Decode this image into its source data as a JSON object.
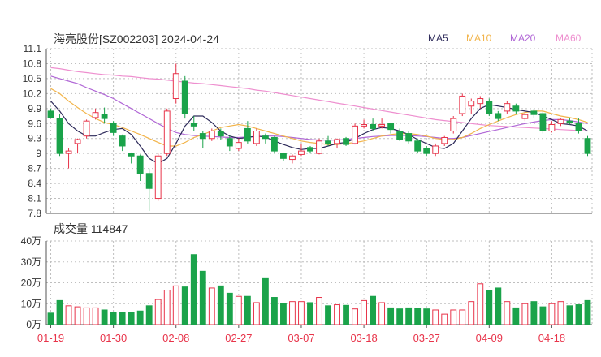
{
  "chart_data": {
    "type": "candlestick",
    "title": "海亮股份[SZ002203] 2024-04-24",
    "legend": [
      {
        "label": "MA5",
        "color": "#2d2a5a"
      },
      {
        "label": "MA10",
        "color": "#f2b44a"
      },
      {
        "label": "MA20",
        "color": "#b066d6"
      },
      {
        "label": "MA60",
        "color": "#ee8fcf"
      }
    ],
    "colors": {
      "up": "#e8344a",
      "down": "#1aa34a",
      "grid": "#bfbfbf",
      "axis": "#333333"
    },
    "price_axis": {
      "ticks": [
        "11.1",
        "10.8",
        "10.5",
        "10.2",
        "9.9",
        "9.6",
        "9.3",
        "9",
        "8.7",
        "8.4",
        "8.1",
        "7.8"
      ],
      "ylim": [
        7.8,
        11.1
      ]
    },
    "x_tick_labels": [
      {
        "index": 0,
        "label": "01-19"
      },
      {
        "index": 7,
        "label": "01-30"
      },
      {
        "index": 14,
        "label": "02-08"
      },
      {
        "index": 21,
        "label": "02-27"
      },
      {
        "index": 28,
        "label": "03-07"
      },
      {
        "index": 35,
        "label": "03-18"
      },
      {
        "index": 42,
        "label": "03-27"
      },
      {
        "index": 49,
        "label": "04-09"
      },
      {
        "index": 56,
        "label": "04-18"
      }
    ],
    "candles": [
      [
        9.85,
        9.72,
        9.9,
        9.7
      ],
      [
        9.7,
        9.0,
        9.8,
        8.95
      ],
      [
        9.0,
        9.05,
        9.1,
        8.7
      ],
      [
        9.2,
        9.28,
        9.3,
        9.0
      ],
      [
        9.35,
        9.65,
        9.68,
        9.3
      ],
      [
        9.72,
        9.82,
        9.9,
        9.68
      ],
      [
        9.78,
        9.7,
        9.92,
        9.6
      ],
      [
        9.6,
        9.42,
        9.65,
        9.35
      ],
      [
        9.35,
        9.15,
        9.38,
        9.05
      ],
      [
        9.0,
        8.95,
        9.02,
        8.8
      ],
      [
        8.95,
        8.6,
        8.98,
        8.45
      ],
      [
        8.6,
        8.3,
        8.7,
        7.85
      ],
      [
        8.1,
        8.95,
        9.0,
        8.05
      ],
      [
        9.0,
        9.85,
        9.9,
        8.95
      ],
      [
        10.1,
        10.6,
        10.8,
        10.0
      ],
      [
        10.45,
        9.8,
        10.55,
        9.7
      ],
      [
        9.6,
        9.55,
        9.75,
        9.45
      ],
      [
        9.4,
        9.3,
        9.45,
        9.1
      ],
      [
        9.3,
        9.45,
        9.5,
        9.25
      ],
      [
        9.45,
        9.35,
        9.5,
        9.28
      ],
      [
        9.3,
        9.15,
        9.35,
        9.05
      ],
      [
        9.1,
        9.22,
        9.3,
        9.05
      ],
      [
        9.5,
        9.25,
        9.65,
        9.2
      ],
      [
        9.2,
        9.45,
        9.5,
        9.15
      ],
      [
        9.35,
        9.3,
        9.4,
        9.2
      ],
      [
        9.32,
        9.05,
        9.35,
        9.0
      ],
      [
        9.0,
        8.9,
        9.02,
        8.85
      ],
      [
        8.88,
        8.95,
        8.98,
        8.8
      ],
      [
        8.98,
        9.05,
        9.2,
        8.95
      ],
      [
        9.12,
        9.05,
        9.15,
        9.0
      ],
      [
        9.0,
        9.25,
        9.3,
        8.98
      ],
      [
        9.25,
        9.2,
        9.35,
        9.15
      ],
      [
        9.2,
        9.28,
        9.3,
        9.1
      ],
      [
        9.3,
        9.18,
        9.33,
        9.15
      ],
      [
        9.2,
        9.55,
        9.6,
        9.18
      ],
      [
        9.55,
        9.58,
        9.68,
        9.5
      ],
      [
        9.58,
        9.5,
        9.7,
        9.45
      ],
      [
        9.55,
        9.58,
        9.7,
        9.5
      ],
      [
        9.6,
        9.48,
        9.62,
        9.4
      ],
      [
        9.45,
        9.28,
        9.5,
        9.25
      ],
      [
        9.4,
        9.25,
        9.45,
        9.2
      ],
      [
        9.25,
        9.05,
        9.3,
        9.0
      ],
      [
        9.1,
        9.0,
        9.15,
        8.95
      ],
      [
        9.0,
        9.15,
        9.2,
        8.95
      ],
      [
        9.2,
        9.32,
        9.35,
        9.15
      ],
      [
        9.45,
        9.7,
        9.75,
        9.4
      ],
      [
        9.8,
        10.15,
        10.2,
        9.75
      ],
      [
        9.95,
        10.05,
        10.1,
        9.8
      ],
      [
        10.0,
        10.1,
        10.15,
        9.9
      ],
      [
        10.05,
        9.8,
        10.1,
        9.75
      ],
      [
        9.8,
        9.7,
        9.85,
        9.65
      ],
      [
        9.85,
        10.0,
        10.05,
        9.8
      ],
      [
        9.95,
        9.85,
        10.0,
        9.8
      ],
      [
        9.7,
        9.78,
        9.85,
        9.65
      ],
      [
        9.85,
        9.78,
        9.9,
        9.72
      ],
      [
        9.8,
        9.45,
        9.85,
        9.4
      ],
      [
        9.45,
        9.58,
        9.65,
        9.42
      ],
      [
        9.6,
        9.68,
        9.7,
        9.55
      ],
      [
        9.65,
        9.62,
        9.72,
        9.58
      ],
      [
        9.6,
        9.45,
        9.7,
        9.4
      ],
      [
        9.3,
        9.0,
        9.35,
        8.95
      ]
    ],
    "ma5": [
      10.05,
      9.85,
      9.6,
      9.45,
      9.35,
      9.35,
      9.42,
      9.48,
      9.5,
      9.38,
      9.15,
      8.9,
      8.8,
      8.9,
      9.2,
      9.55,
      9.75,
      9.75,
      9.62,
      9.45,
      9.35,
      9.3,
      9.32,
      9.35,
      9.33,
      9.25,
      9.18,
      9.12,
      9.08,
      9.1,
      9.1,
      9.15,
      9.2,
      9.22,
      9.3,
      9.4,
      9.48,
      9.52,
      9.5,
      9.45,
      9.38,
      9.28,
      9.2,
      9.12,
      9.1,
      9.2,
      9.45,
      9.7,
      9.9,
      9.98,
      9.95,
      9.92,
      9.88,
      9.85,
      9.82,
      9.75,
      9.68,
      9.6,
      9.58,
      9.55,
      9.45
    ],
    "ma10": [
      10.3,
      10.2,
      10.05,
      9.92,
      9.8,
      9.7,
      9.62,
      9.58,
      9.52,
      9.45,
      9.38,
      9.3,
      9.22,
      9.15,
      9.15,
      9.22,
      9.32,
      9.38,
      9.45,
      9.52,
      9.55,
      9.58,
      9.55,
      9.5,
      9.45,
      9.4,
      9.35,
      9.3,
      9.25,
      9.22,
      9.2,
      9.18,
      9.18,
      9.2,
      9.22,
      9.25,
      9.3,
      9.35,
      9.38,
      9.4,
      9.4,
      9.38,
      9.35,
      9.3,
      9.28,
      9.28,
      9.32,
      9.4,
      9.5,
      9.58,
      9.65,
      9.72,
      9.78,
      9.82,
      9.85,
      9.85,
      9.8,
      9.75,
      9.72,
      9.68,
      9.62
    ],
    "ma20": [
      10.55,
      10.5,
      10.45,
      10.4,
      10.32,
      10.25,
      10.18,
      10.1,
      10.0,
      9.9,
      9.8,
      9.7,
      9.6,
      9.5,
      9.42,
      9.38,
      9.36,
      9.35,
      9.34,
      9.33,
      9.32,
      9.32,
      9.33,
      9.34,
      9.35,
      9.35,
      9.34,
      9.32,
      9.3,
      9.28,
      9.27,
      9.27,
      9.27,
      9.28,
      9.3,
      9.32,
      9.34,
      9.35,
      9.36,
      9.36,
      9.36,
      9.35,
      9.34,
      9.32,
      9.3,
      9.3,
      9.32,
      9.36,
      9.4,
      9.44,
      9.48,
      9.52,
      9.56,
      9.6,
      9.63,
      9.66,
      9.68,
      9.68,
      9.66,
      9.63,
      9.6
    ],
    "ma60": [
      10.72,
      10.7,
      10.67,
      10.64,
      10.62,
      10.6,
      10.58,
      10.57,
      10.55,
      10.54,
      10.52,
      10.5,
      10.49,
      10.47,
      10.45,
      10.43,
      10.41,
      10.4,
      10.38,
      10.36,
      10.34,
      10.32,
      10.3,
      10.27,
      10.25,
      10.22,
      10.19,
      10.16,
      10.13,
      10.1,
      10.07,
      10.04,
      10.01,
      9.98,
      9.95,
      9.92,
      9.89,
      9.86,
      9.83,
      9.8,
      9.77,
      9.74,
      9.71,
      9.68,
      9.66,
      9.64,
      9.62,
      9.6,
      9.58,
      9.56,
      9.55,
      9.54,
      9.53,
      9.52,
      9.51,
      9.5,
      9.49,
      9.48,
      9.47,
      9.46,
      9.45
    ],
    "volume": {
      "title": "成交量 114847",
      "ticks": [
        "40万",
        "30万",
        "20万",
        "10万",
        "0万"
      ],
      "ylim": [
        0,
        400000
      ],
      "values": [
        55000,
        115000,
        90000,
        85000,
        80000,
        80000,
        70000,
        60000,
        60000,
        60000,
        65000,
        90000,
        120000,
        165000,
        185000,
        180000,
        335000,
        255000,
        175000,
        185000,
        150000,
        135000,
        135000,
        105000,
        220000,
        130000,
        100000,
        110000,
        110000,
        105000,
        130000,
        90000,
        95000,
        92000,
        75000,
        115000,
        135000,
        105000,
        80000,
        75000,
        80000,
        78000,
        75000,
        70000,
        50000,
        70000,
        70000,
        110000,
        195000,
        165000,
        175000,
        110000,
        80000,
        100000,
        110000,
        85000,
        100000,
        110000,
        90000,
        95000,
        115000
      ]
    }
  }
}
